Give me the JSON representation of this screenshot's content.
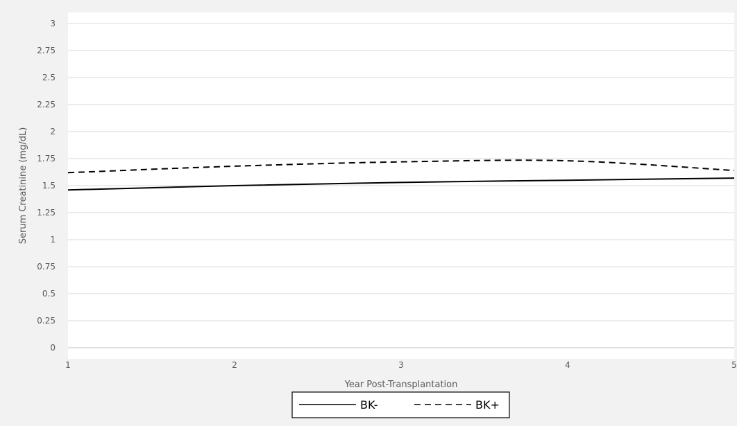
{
  "chart_data": {
    "type": "line",
    "xlabel": "Year Post-Transplantation",
    "ylabel": "Serum Creatinine (mg/dL)",
    "x": [
      1,
      2,
      3,
      4,
      5
    ],
    "xlim": [
      1,
      5
    ],
    "ylim": [
      0,
      3
    ],
    "y_ticks": [
      0,
      0.25,
      0.5,
      0.75,
      1,
      1.25,
      1.5,
      1.75,
      2,
      2.25,
      2.5,
      2.75,
      3
    ],
    "y_tick_labels": [
      "0",
      "0.25",
      "0.5",
      "0.75",
      "1",
      "1.25",
      "1.5",
      "1.75",
      "2",
      "2.25",
      "2.5",
      "2.75",
      "3"
    ],
    "x_tick_labels": [
      "1",
      "2",
      "3",
      "4",
      "5"
    ],
    "grid": "horizontal",
    "legend_position": "bottom",
    "series": [
      {
        "name": "BK-",
        "style": "solid",
        "color": "#000000",
        "values": [
          1.46,
          1.5,
          1.53,
          1.55,
          1.57
        ]
      },
      {
        "name": "BK+",
        "style": "dashed",
        "color": "#000000",
        "values": [
          1.62,
          1.68,
          1.72,
          1.73,
          1.64
        ]
      }
    ]
  }
}
